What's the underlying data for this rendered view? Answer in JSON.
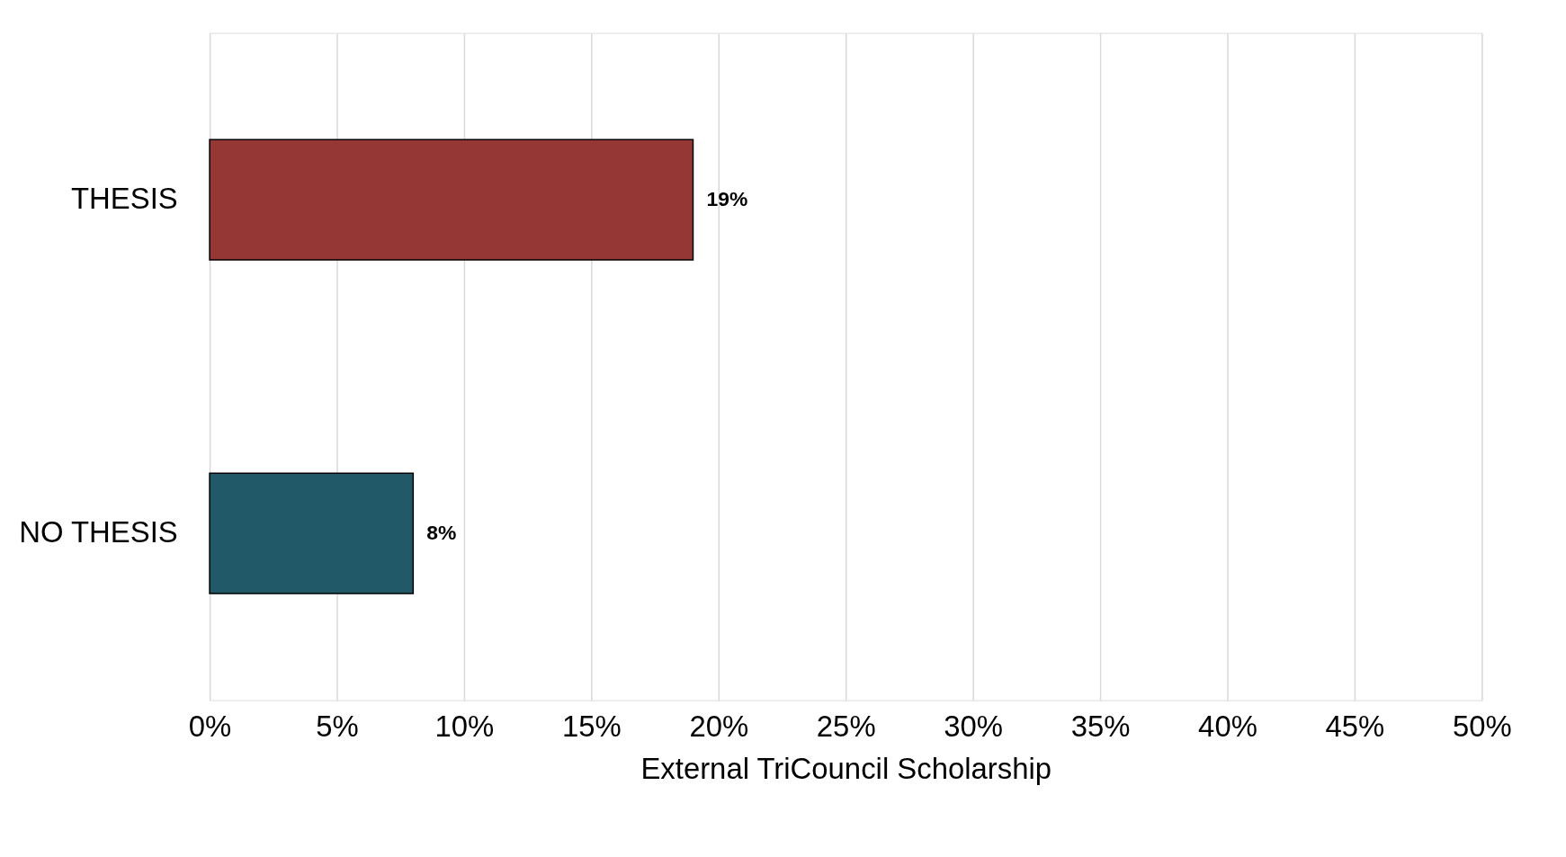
{
  "chart_data": {
    "type": "bar",
    "orientation": "horizontal",
    "xlabel": "External TriCouncil Scholarship",
    "categories": [
      "THESIS",
      "NO THESIS"
    ],
    "values": [
      19,
      8
    ],
    "colors": [
      "#953735",
      "#215968"
    ],
    "value_labels": [
      "19%",
      "8%"
    ],
    "xlim": [
      0,
      50
    ],
    "xticks": [
      {
        "value": 0,
        "label": "0%"
      },
      {
        "value": 5,
        "label": "5%"
      },
      {
        "value": 10,
        "label": "10%"
      },
      {
        "value": 15,
        "label": "15%"
      },
      {
        "value": 20,
        "label": "20%"
      },
      {
        "value": 25,
        "label": "25%"
      },
      {
        "value": 30,
        "label": "30%"
      },
      {
        "value": 35,
        "label": "35%"
      },
      {
        "value": 40,
        "label": "40%"
      },
      {
        "value": 45,
        "label": "45%"
      },
      {
        "value": 50,
        "label": "50%"
      }
    ],
    "grid": "x"
  }
}
